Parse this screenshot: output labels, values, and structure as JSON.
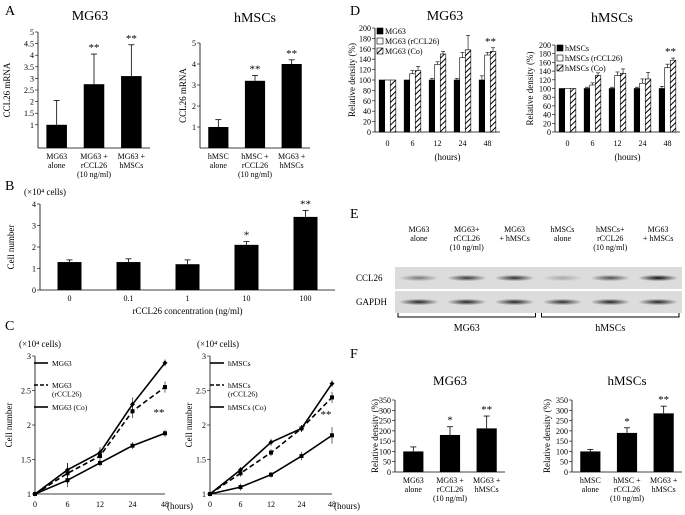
{
  "panels": {
    "A": "A",
    "B": "B",
    "C": "C",
    "D": "D",
    "E": "E",
    "F": "F"
  },
  "chart_data": [
    {
      "id": "A-MG63",
      "type": "bar",
      "title": "MG63",
      "ylabel": "CCL26 mRNA",
      "categories": [
        "MG63\nalone",
        "MG63 +\nrCCL26\n(10 ng/ml)",
        "MG63 +\nhMSCs"
      ],
      "values": [
        1.0,
        2.75,
        3.1
      ],
      "errors": [
        1.05,
        1.3,
        1.35
      ],
      "sig": [
        "",
        "**",
        "**"
      ],
      "ylim": [
        0,
        5
      ],
      "yticks": [
        1,
        1.5,
        2,
        2.5,
        3,
        3.5,
        4,
        4.5,
        5
      ]
    },
    {
      "id": "A-hMSCs",
      "type": "bar",
      "title": "hMSCs",
      "ylabel": "CCL26 mRNA",
      "categories": [
        "hMSC\nalone",
        "hMSC +\nrCCL26\n(10 ng/ml)",
        "MG63 +\nhMSCs"
      ],
      "values": [
        1.0,
        3.2,
        4.0
      ],
      "errors": [
        0.35,
        0.25,
        0.2
      ],
      "sig": [
        "",
        "**",
        "**"
      ],
      "ylim": [
        0,
        5
      ],
      "yticks": [
        1,
        2,
        3,
        4,
        5
      ]
    },
    {
      "id": "B",
      "type": "bar",
      "ylabel": "Cell number",
      "unit_label": "(×10⁴ cells)",
      "xlabel": "rCCL26 concentration (ng/ml)",
      "categories": [
        "0",
        "0.1",
        "1",
        "10",
        "100"
      ],
      "values": [
        1.3,
        1.3,
        1.2,
        2.1,
        3.4
      ],
      "errors": [
        0.1,
        0.15,
        0.2,
        0.15,
        0.3
      ],
      "sig": [
        "",
        "",
        "",
        "*",
        "**"
      ],
      "ylim": [
        0,
        4
      ],
      "yticks": [
        0,
        1,
        2,
        3,
        4
      ]
    },
    {
      "id": "C-MG63",
      "type": "line",
      "ylabel": "Cell number",
      "unit_label": "(×10⁴ cells)",
      "xlabel": "(hours)",
      "x": [
        "0",
        "6",
        "12",
        "24",
        "48"
      ],
      "ylim": [
        1,
        3
      ],
      "yticks": [
        1,
        1.5,
        2,
        2.5,
        3
      ],
      "series": [
        {
          "name": "MG63",
          "values": [
            1.0,
            1.2,
            1.45,
            1.7,
            1.88
          ],
          "errors": [
            0,
            0.1,
            0.05,
            0.05,
            0.05
          ],
          "style": "solid-square"
        },
        {
          "name": "MG63\n(rCCL26)",
          "values": [
            1.0,
            1.3,
            1.55,
            2.2,
            2.55
          ],
          "errors": [
            0,
            0.15,
            0.1,
            0.1,
            0.08
          ],
          "style": "dashed-square"
        },
        {
          "name": "MG63 (Co)",
          "values": [
            1.0,
            1.35,
            1.6,
            2.3,
            2.9
          ],
          "errors": [
            0,
            0.1,
            0.08,
            0.1,
            0.05
          ],
          "style": "solid-diamond"
        }
      ],
      "annotations": [
        {
          "x": "48",
          "text": "**"
        }
      ]
    },
    {
      "id": "C-hMSCs",
      "type": "line",
      "ylabel": "Cell number",
      "unit_label": "(×10⁴ cells)",
      "xlabel": "(hours)",
      "x": [
        "0",
        "6",
        "12",
        "24",
        "48"
      ],
      "ylim": [
        1,
        3
      ],
      "yticks": [
        1,
        1.5,
        2,
        2.5,
        3
      ],
      "series": [
        {
          "name": "hMSCs",
          "values": [
            1.0,
            1.1,
            1.28,
            1.55,
            1.85
          ],
          "errors": [
            0,
            0.05,
            0.04,
            0.06,
            0.12
          ],
          "style": "solid-square"
        },
        {
          "name": "hMSCs\n(rCCL26)",
          "values": [
            1.0,
            1.3,
            1.6,
            1.95,
            2.4
          ],
          "errors": [
            0,
            0.05,
            0.05,
            0.05,
            0.08
          ],
          "style": "dashed-square"
        },
        {
          "name": "hMSCs (Co)",
          "values": [
            1.0,
            1.35,
            1.75,
            1.95,
            2.6
          ],
          "errors": [
            0,
            0.04,
            0.05,
            0.05,
            0.05
          ],
          "style": "solid-diamond"
        }
      ],
      "annotations": [
        {
          "x": "48",
          "text": "**"
        }
      ]
    },
    {
      "id": "D-MG63",
      "type": "bar",
      "title": "MG63",
      "ylabel": "Relative density (%)",
      "xlabel": "(hours)",
      "categories": [
        "0",
        "6",
        "12",
        "24",
        "48"
      ],
      "ylim": [
        0,
        200
      ],
      "yticks": [
        0,
        20,
        40,
        60,
        80,
        100,
        120,
        140,
        160,
        180,
        200
      ],
      "series": [
        {
          "name": "MG63",
          "values": [
            100,
            100,
            100,
            100,
            100
          ],
          "errors": [
            0,
            0,
            3,
            3,
            8
          ],
          "fill": "black"
        },
        {
          "name": "MG63 (rCCL26)",
          "values": [
            100,
            112,
            130,
            143,
            148
          ],
          "errors": [
            0,
            6,
            5,
            10,
            5
          ],
          "fill": "white"
        },
        {
          "name": "MG63 (Co)",
          "values": [
            100,
            118,
            150,
            158,
            155
          ],
          "errors": [
            0,
            8,
            5,
            28,
            7
          ],
          "fill": "hatch"
        }
      ],
      "annotations": [
        {
          "x": "48",
          "text": "**"
        }
      ]
    },
    {
      "id": "D-hMSCs",
      "type": "bar",
      "title": "hMSCs",
      "ylabel": "Relative density (%)",
      "xlabel": "(hours)",
      "categories": [
        "0",
        "6",
        "12",
        "24",
        "48"
      ],
      "ylim": [
        0,
        200
      ],
      "yticks": [
        0,
        20,
        40,
        60,
        80,
        100,
        120,
        140,
        160,
        180,
        200
      ],
      "series": [
        {
          "name": "hMSCs",
          "values": [
            100,
            100,
            100,
            100,
            100
          ],
          "errors": [
            0,
            3,
            3,
            3,
            5
          ],
          "fill": "black"
        },
        {
          "name": "hMSCs (rCCL26)",
          "values": [
            100,
            108,
            130,
            112,
            148
          ],
          "errors": [
            0,
            5,
            8,
            10,
            8
          ],
          "fill": "white"
        },
        {
          "name": "hMSCs (Co)",
          "values": [
            100,
            130,
            135,
            122,
            165
          ],
          "errors": [
            0,
            6,
            10,
            15,
            5
          ],
          "fill": "hatch"
        }
      ],
      "annotations": [
        {
          "x": "48",
          "text": "**"
        }
      ]
    },
    {
      "id": "F-MG63",
      "type": "bar",
      "title": "MG63",
      "ylabel": "Relative density (%)",
      "categories": [
        "MG63\nalone",
        "MG63 +\nrCCL26\n(10 ng/ml)",
        "MG63 +\nhMSCs"
      ],
      "values": [
        100,
        180,
        212
      ],
      "errors": [
        22,
        40,
        60
      ],
      "sig": [
        "",
        "*",
        "**"
      ],
      "ylim": [
        0,
        350
      ],
      "yticks": [
        0,
        50,
        100,
        150,
        200,
        250,
        300,
        350
      ]
    },
    {
      "id": "F-hMSCs",
      "type": "bar",
      "title": "hMSCs",
      "ylabel": "Relative density (%)",
      "categories": [
        "hMSC\nalone",
        "hMSC +\nrCCL26\n(10 ng/ml)",
        "MG63 +\nhMSCs"
      ],
      "values": [
        100,
        190,
        285
      ],
      "errors": [
        10,
        25,
        35
      ],
      "sig": [
        "",
        "*",
        "**"
      ],
      "ylim": [
        0,
        350
      ],
      "yticks": [
        0,
        50,
        100,
        150,
        200,
        250,
        300,
        350
      ]
    }
  ],
  "blot": {
    "lanes": [
      "MG63\nalone",
      "MG63+\nrCCL26\n(10 ng/ml)",
      "MG63\n+ hMSCs",
      "hMSCs\nalone",
      "hMSCs+\nrCCL26\n(10 ng/ml)",
      "MG63\n+ hMSCs"
    ],
    "rows": [
      "CCL26",
      "GAPDH"
    ],
    "groups": [
      "MG63",
      "hMSCs"
    ],
    "ccl26_intensity": [
      0.45,
      0.75,
      0.8,
      0.25,
      0.65,
      0.95
    ],
    "gapdh_intensity": [
      0.85,
      0.85,
      0.85,
      0.8,
      0.85,
      0.85
    ]
  }
}
